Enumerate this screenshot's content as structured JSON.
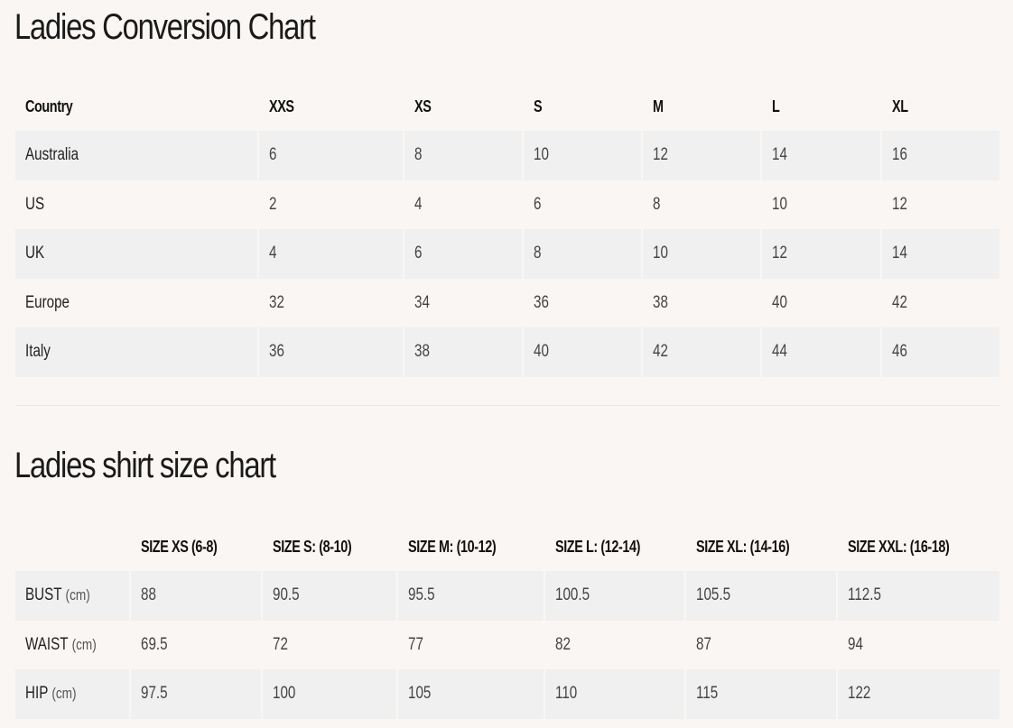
{
  "conversion": {
    "title": "Ladies Conversion Chart",
    "headers": [
      "Country",
      "XXS",
      "XS",
      "S",
      "M",
      "L",
      "XL"
    ],
    "rows": [
      [
        "Australia",
        "6",
        "8",
        "10",
        "12",
        "14",
        "16"
      ],
      [
        "US",
        "2",
        "4",
        "6",
        "8",
        "10",
        "12"
      ],
      [
        "UK",
        "4",
        "6",
        "8",
        "10",
        "12",
        "14"
      ],
      [
        "Europe",
        "32",
        "34",
        "36",
        "38",
        "40",
        "42"
      ],
      [
        "Italy",
        "36",
        "38",
        "40",
        "42",
        "44",
        "46"
      ]
    ]
  },
  "shirt": {
    "title": "Ladies shirt size chart",
    "headers": [
      "",
      "SIZE XS (6-8)",
      "SIZE S: (8-10)",
      "SIZE M: (10-12)",
      "SIZE L: (12-14)",
      "SIZE XL: (14-16)",
      "SIZE XXL: (16-18)"
    ],
    "rows": [
      {
        "label": "BUST",
        "unit": "(cm)",
        "values": [
          "88",
          "90.5",
          "95.5",
          "100.5",
          "105.5",
          "112.5"
        ]
      },
      {
        "label": "WAIST",
        "unit": "(cm)",
        "values": [
          "69.5",
          "72",
          "77",
          "82",
          "87",
          "94"
        ]
      },
      {
        "label": "HIP",
        "unit": "(cm)",
        "values": [
          "97.5",
          "100",
          "105",
          "110",
          "115",
          "122"
        ]
      }
    ]
  }
}
